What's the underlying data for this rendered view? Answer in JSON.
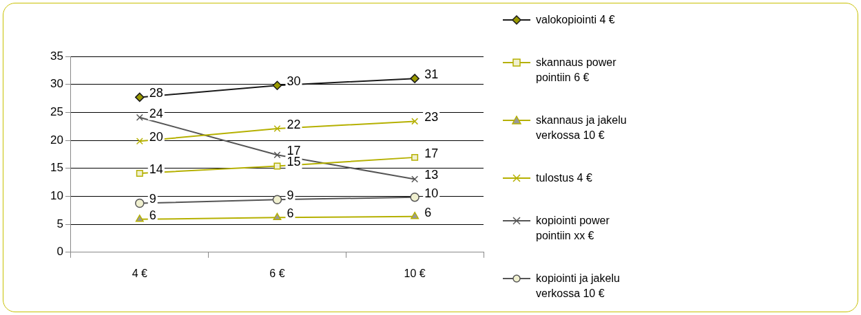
{
  "chart_data": {
    "type": "line",
    "categories": [
      "4 €",
      "6 €",
      "10 €"
    ],
    "ylim": [
      0,
      35
    ],
    "yticks": [
      0,
      5,
      10,
      15,
      20,
      25,
      30,
      35
    ],
    "grid": "y",
    "legend": "right",
    "line_style": "solid",
    "series": [
      {
        "name": "valokopiointi 4 €",
        "color": "#1a1a1a",
        "marker": "diamond",
        "values": [
          27.7,
          29.8,
          31.05
        ],
        "value_labels": [
          "28",
          "30",
          "31"
        ]
      },
      {
        "name": "skannaus power pointiin 6 €",
        "color": "#b5b000",
        "marker": "square",
        "values": [
          14.1,
          15.4,
          16.95
        ],
        "value_labels": [
          "14",
          "15",
          "17"
        ]
      },
      {
        "name": "skannaus ja jakelu verkossa 10 €",
        "color": "#b5b000",
        "marker": "triangle",
        "values": [
          5.9,
          6.2,
          6.4
        ],
        "value_labels": [
          "6",
          "6",
          "6"
        ]
      },
      {
        "name": "tulostus 4 €",
        "color": "#b5b000",
        "marker": "cross",
        "values": [
          19.85,
          22.1,
          23.4
        ],
        "value_labels": [
          "20",
          "22",
          "23"
        ]
      },
      {
        "name": "kopiointi power pointiin xx €",
        "color": "#555555",
        "marker": "cross",
        "values": [
          24.1,
          17.4,
          13.06
        ],
        "value_labels": [
          "24",
          "17",
          "13"
        ]
      },
      {
        "name": "kopiointi ja jakelu verkossa 10 €",
        "color": "#555555",
        "marker": "circle",
        "values": [
          8.76,
          9.4,
          9.85
        ],
        "value_labels": [
          "9",
          "9",
          "10"
        ]
      }
    ]
  }
}
